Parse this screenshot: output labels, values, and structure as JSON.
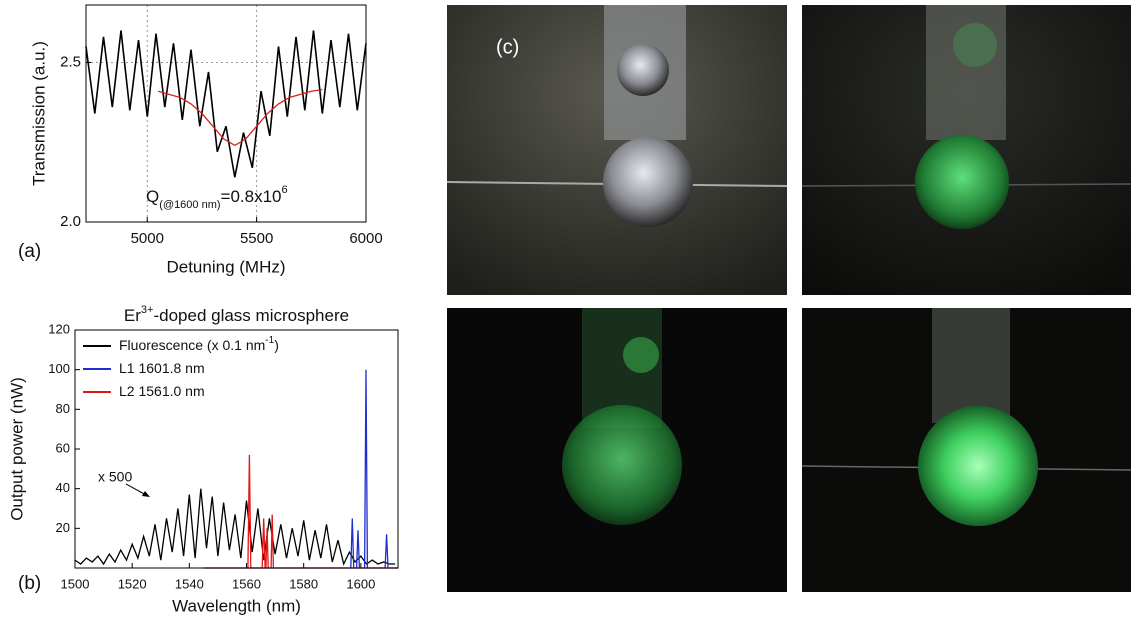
{
  "chart_data": [
    {
      "type": "line",
      "panel_label": "(a)",
      "x_label": "Detuning (MHz)",
      "y_label": "Transmission (a.u.)",
      "xlim": [
        4720,
        6000
      ],
      "xticks": [
        5000,
        5500,
        6000
      ],
      "ylim": [
        2.0,
        2.68
      ],
      "yticks": [
        {
          "value": 2,
          "label": "2.0"
        },
        2.5
      ],
      "grid": true,
      "annotation": {
        "main": "Q",
        "sub": "(@1600 nm)",
        "text": "=0.8x10",
        "sup": "6"
      },
      "series": [
        {
          "color": "#000000",
          "x": [
            4720,
            4760,
            4800,
            4840,
            4880,
            4920,
            4960,
            5000,
            5040,
            5080,
            5120,
            5160,
            5200,
            5240,
            5280,
            5320,
            5360,
            5400,
            5440,
            5480,
            5520,
            5560,
            5600,
            5640,
            5680,
            5720,
            5760,
            5800,
            5840,
            5880,
            5920,
            5960,
            6000
          ],
          "values": [
            2.55,
            2.34,
            2.58,
            2.36,
            2.6,
            2.35,
            2.57,
            2.33,
            2.59,
            2.36,
            2.56,
            2.32,
            2.54,
            2.3,
            2.47,
            2.22,
            2.3,
            2.14,
            2.28,
            2.17,
            2.41,
            2.27,
            2.55,
            2.33,
            2.58,
            2.35,
            2.6,
            2.34,
            2.57,
            2.36,
            2.59,
            2.35,
            2.56
          ]
        },
        {
          "color": "#d62020",
          "x": [
            5050,
            5100,
            5150,
            5200,
            5250,
            5300,
            5350,
            5400,
            5450,
            5500,
            5550,
            5600,
            5650,
            5700,
            5750,
            5800
          ],
          "values": [
            2.41,
            2.4,
            2.39,
            2.37,
            2.34,
            2.3,
            2.26,
            2.24,
            2.26,
            2.3,
            2.34,
            2.37,
            2.39,
            2.4,
            2.41,
            2.415
          ]
        }
      ]
    },
    {
      "type": "line",
      "panel_label": "(b)",
      "title": {
        "text": "Er",
        "sup": "3+",
        "rest": "-doped glass microsphere"
      },
      "x_label": "Wavelength (nm)",
      "y_label": "Output power (nW)",
      "xlim": [
        1500,
        1613
      ],
      "xticks": [
        1500,
        1520,
        1540,
        1560,
        1580,
        1600
      ],
      "ylim": [
        0,
        120
      ],
      "yticks": [
        20,
        40,
        60,
        80,
        100,
        120
      ],
      "grid": false,
      "legend": "upper left",
      "annotation": {
        "text": "x 500"
      },
      "series": [
        {
          "name": "Fluorescence (x 0.1 nm",
          "name_sup": "-1",
          "name_end": ")",
          "color": "#000000",
          "x": [
            1500,
            1502,
            1504,
            1506,
            1508,
            1510,
            1512,
            1514,
            1516,
            1518,
            1520,
            1522,
            1524,
            1526,
            1528,
            1530,
            1532,
            1534,
            1536,
            1538,
            1540,
            1542,
            1544,
            1546,
            1548,
            1550,
            1552,
            1554,
            1556,
            1558,
            1560,
            1562,
            1564,
            1566,
            1568,
            1570,
            1572,
            1574,
            1576,
            1578,
            1580,
            1582,
            1584,
            1586,
            1588,
            1590,
            1592,
            1594,
            1596,
            1598,
            1600,
            1602,
            1604,
            1606,
            1608,
            1610,
            1612
          ],
          "values": [
            4,
            2,
            5,
            3,
            6,
            2,
            7,
            3,
            9,
            4,
            12,
            5,
            16,
            6,
            22,
            4,
            25,
            8,
            30,
            6,
            37,
            5,
            40,
            10,
            36,
            6,
            33,
            9,
            27,
            5,
            34,
            8,
            30,
            4,
            25,
            7,
            22,
            5,
            20,
            6,
            24,
            4,
            19,
            5,
            22,
            3,
            14,
            2,
            8,
            3,
            6,
            2,
            4,
            2,
            3,
            2,
            2
          ]
        },
        {
          "name": "L1 1601.8 nm",
          "color": "#1f2fd0",
          "x": [
            1545,
            1596.5,
            1597,
            1597.5,
            1598.5,
            1599,
            1599.5,
            1601.3,
            1601.8,
            1602.3,
            1608.5,
            1609,
            1609.5,
            1613
          ],
          "values": [
            0,
            0,
            25,
            0,
            0,
            19,
            0,
            0,
            100,
            0,
            0,
            17,
            0,
            0
          ]
        },
        {
          "name": "L2 1561.0 nm",
          "color": "#e01818",
          "x": [
            1545,
            1560.5,
            1561,
            1561.5,
            1565.5,
            1566,
            1566.5,
            1566.8,
            1567.2,
            1567.6,
            1568.6,
            1569,
            1569.4,
            1613
          ],
          "values": [
            0,
            0,
            57,
            0,
            0,
            25,
            0,
            0,
            20,
            0,
            0,
            27,
            0,
            0
          ]
        }
      ]
    }
  ],
  "photos": {
    "label": "(c)"
  }
}
